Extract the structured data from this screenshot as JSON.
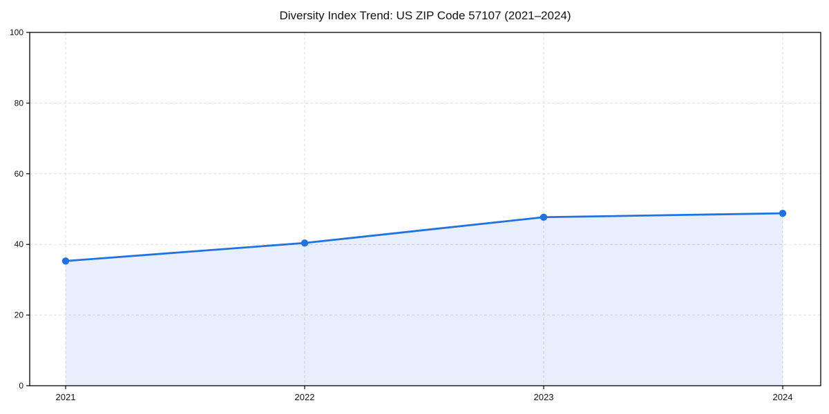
{
  "chart_data": {
    "type": "area",
    "title": "Diversity Index Trend: US ZIP Code 57107 (2021–2024)",
    "series_name": "Diversity Index",
    "x": [
      2021,
      2022,
      2023,
      2024
    ],
    "xtick_labels": [
      "2021",
      "2022",
      "2023",
      "2024"
    ],
    "values": [
      35.3,
      40.4,
      47.7,
      48.8
    ],
    "ylim": [
      0,
      100
    ],
    "yticks": [
      0,
      20,
      40,
      60,
      80,
      100
    ],
    "xlabel": "",
    "ylabel": "",
    "grid": "dashed",
    "legend_position": "none",
    "line_color": "#2271e0",
    "marker_color": "#2271e0",
    "fill_color": "#2271e0",
    "fill_opacity": 0.11,
    "grid_color": "#dcdcdc",
    "axis_color": "#000000",
    "tick_label_color": "#111111"
  }
}
